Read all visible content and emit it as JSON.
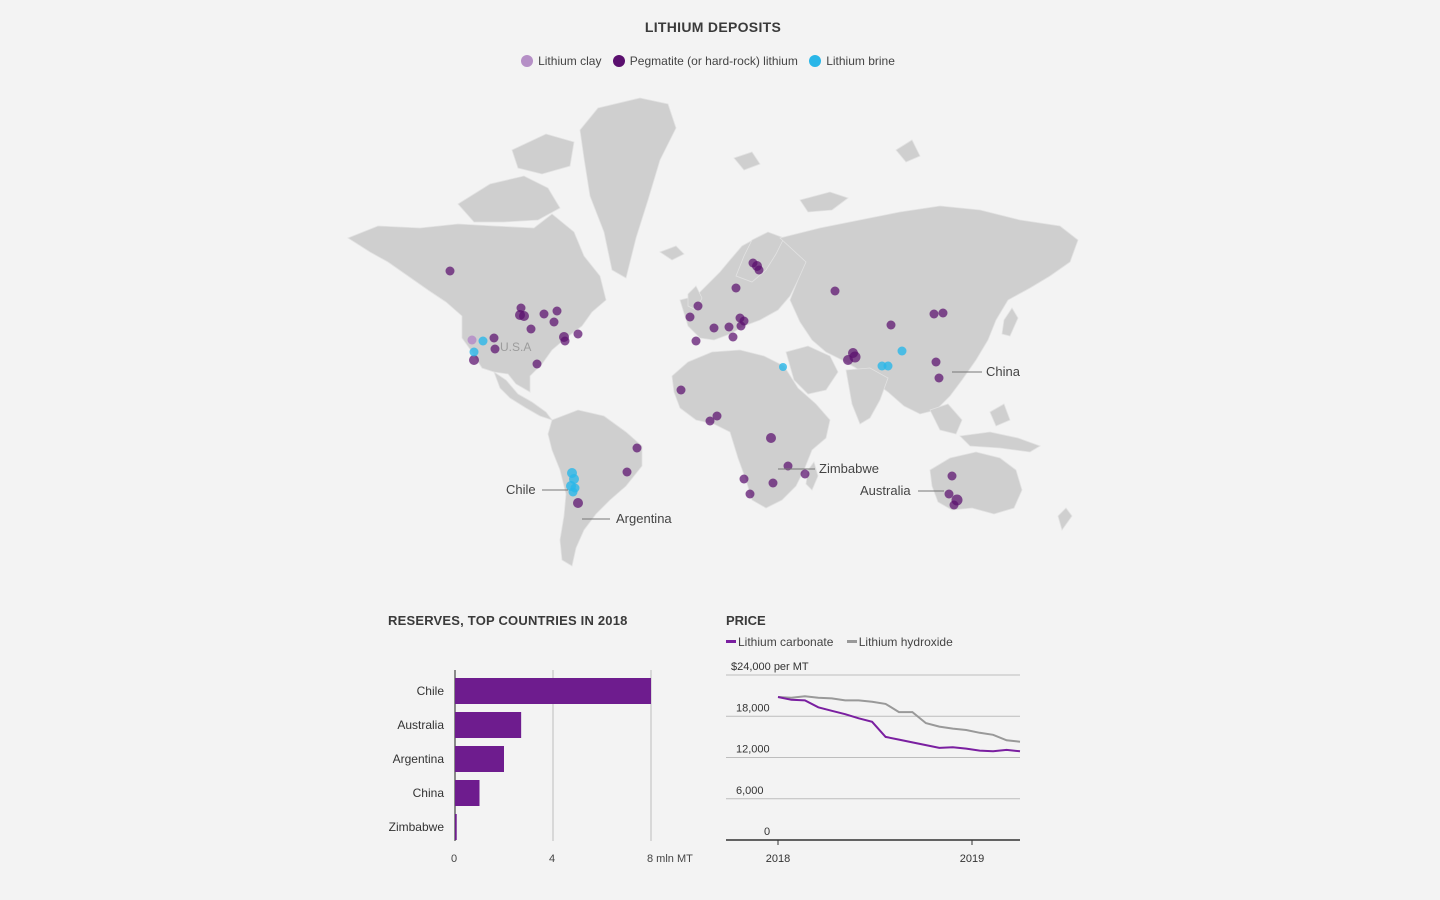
{
  "map": {
    "title": "LITHIUM DEPOSITS",
    "legend": [
      {
        "label": "Lithium clay",
        "color": "#b58fc6"
      },
      {
        "label": "Pegmatite (or hard-rock) lithium",
        "color": "#5a0f6e"
      },
      {
        "label": "Lithium brine",
        "color": "#29b6e8"
      }
    ],
    "country_labels": [
      "U.S.A",
      "China",
      "Zimbabwe",
      "Australia",
      "Chile",
      "Argentina"
    ]
  },
  "chart_data": [
    {
      "type": "bar",
      "title": "RESERVES, TOP COUNTRIES IN 2018",
      "categories": [
        "Chile",
        "Australia",
        "Argentina",
        "China",
        "Zimbabwe"
      ],
      "values": [
        8,
        2.7,
        2,
        1,
        0.07
      ],
      "xlim": [
        0,
        8
      ],
      "xticks": [
        "0",
        "4",
        "8"
      ],
      "xunit": "mln MT",
      "color": "#6e1c8e",
      "grid": true
    },
    {
      "type": "line",
      "title": "PRICE",
      "yticks": [
        "$24,000 per MT",
        "18,000",
        "12,000",
        "6,000",
        "0"
      ],
      "ylim": [
        0,
        24000
      ],
      "xticks": [
        "2018",
        "2019"
      ],
      "series": [
        {
          "name": "Lithium carbonate",
          "color": "#7a1fa0",
          "values": [
            20800,
            20400,
            20300,
            19300,
            18800,
            18300,
            17700,
            17200,
            15000,
            14600,
            14200,
            13800,
            13400,
            13500,
            13300,
            13000,
            12900,
            13100,
            12900
          ]
        },
        {
          "name": "Lithium hydroxide",
          "color": "#999999",
          "values": [
            20800,
            20700,
            20900,
            20700,
            20600,
            20300,
            20300,
            20100,
            19800,
            18600,
            18600,
            17000,
            16500,
            16200,
            16000,
            15600,
            15300,
            14500,
            14300
          ]
        }
      ]
    }
  ]
}
